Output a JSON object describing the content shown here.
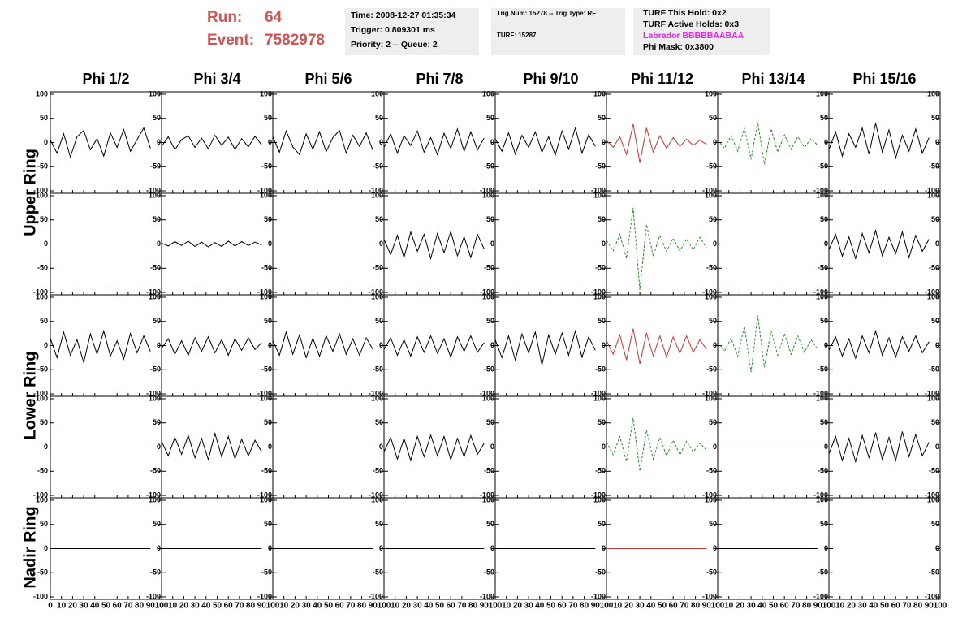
{
  "header": {
    "run_label": "Run:",
    "run": "64",
    "event_label": "Event:",
    "event": "7582978"
  },
  "info": {
    "time": "Time: 2008-12-27 01:35:34",
    "trigger": "Trigger: 0.809301 ms",
    "priority": "Priority: 2 -- Queue: 2",
    "trig": "Trig Num: 15278 -- Trig Type: RF",
    "turf": "TURF: 15287",
    "hold": "TURF This Hold: 0x2",
    "active": "TURF Active Holds: 0x3",
    "labrador": "Labrador BBBBBAABAA",
    "phimask": "Phi Mask: 0x3800"
  },
  "chart_data": {
    "type": "line",
    "columns": [
      "Phi 1/2",
      "Phi 3/4",
      "Phi 5/6",
      "Phi 7/8",
      "Phi 9/10",
      "Phi 11/12",
      "Phi 13/14",
      "Phi 15/16"
    ],
    "row_titles": [
      "Upper Ring",
      "Lower Ring",
      "Nadir Ring"
    ],
    "x": [
      0,
      6,
      12,
      18,
      24,
      30,
      36,
      42,
      48,
      54,
      60,
      66,
      72,
      78,
      84,
      90
    ],
    "xlim": [
      0,
      100
    ],
    "xticks": [
      0,
      10,
      20,
      30,
      40,
      50,
      60,
      70,
      80,
      90,
      100
    ],
    "ylim": [
      -105,
      105
    ],
    "yticks": [
      -100,
      -50,
      0,
      50,
      100
    ],
    "panels": [
      [
        {
          "color": "#000000",
          "style": "solid",
          "values": [
            5,
            -22,
            18,
            -30,
            12,
            25,
            -15,
            8,
            -28,
            20,
            -10,
            27,
            -18,
            6,
            30,
            -12
          ]
        },
        {
          "color": "#000000",
          "style": "solid",
          "values": [
            -8,
            12,
            -15,
            6,
            14,
            -10,
            9,
            -13,
            15,
            -6,
            11,
            -14,
            8,
            -9,
            13,
            -5
          ]
        },
        {
          "color": "#000000",
          "style": "solid",
          "values": [
            12,
            -20,
            24,
            -9,
            -25,
            18,
            -14,
            22,
            -19,
            10,
            25,
            -22,
            15,
            -8,
            20,
            -16
          ]
        },
        {
          "color": "#000000",
          "style": "solid",
          "values": [
            -10,
            18,
            -22,
            14,
            -6,
            24,
            -20,
            10,
            -25,
            19,
            -12,
            28,
            -18,
            22,
            -15,
            9
          ]
        },
        {
          "color": "#000000",
          "style": "solid",
          "values": [
            8,
            -18,
            20,
            -24,
            15,
            -10,
            22,
            -20,
            12,
            -26,
            24,
            -14,
            30,
            -22,
            16,
            -8
          ]
        },
        {
          "color": "#cc3333",
          "style": "solid",
          "values": [
            4,
            -10,
            12,
            -25,
            38,
            -42,
            30,
            -20,
            14,
            -12,
            10,
            -8,
            7,
            -6,
            5,
            -4
          ]
        },
        {
          "color": "#2e8b2e",
          "style": "dashed",
          "values": [
            6,
            -12,
            14,
            -18,
            30,
            -35,
            42,
            -45,
            28,
            -20,
            16,
            -14,
            12,
            -10,
            8,
            -6
          ]
        },
        {
          "color": "#000000",
          "style": "solid",
          "values": [
            -15,
            22,
            -28,
            18,
            -10,
            30,
            -24,
            40,
            -20,
            26,
            -32,
            15,
            -18,
            28,
            -22,
            10
          ]
        }
      ],
      [
        {
          "color": "#000000",
          "style": "solid",
          "values": [
            0,
            0,
            0,
            0,
            0,
            0,
            0,
            0,
            0,
            0,
            0,
            0,
            0,
            0,
            0,
            0
          ]
        },
        {
          "color": "#000000",
          "style": "solid",
          "values": [
            2,
            -4,
            5,
            -3,
            6,
            -5,
            4,
            -6,
            3,
            -5,
            6,
            -4,
            5,
            -3,
            4,
            -2
          ]
        },
        {
          "color": "#000000",
          "style": "solid",
          "values": [
            0,
            0,
            0,
            0,
            0,
            0,
            0,
            0,
            0,
            0,
            0,
            0,
            0,
            0,
            0,
            0
          ]
        },
        {
          "color": "#000000",
          "style": "solid",
          "values": [
            10,
            -22,
            18,
            -28,
            25,
            -15,
            20,
            -30,
            22,
            -18,
            26,
            -24,
            15,
            -28,
            20,
            -10
          ]
        },
        {
          "color": "#000000",
          "style": "solid",
          "values": [
            0,
            0,
            0,
            0,
            0,
            0,
            0,
            0,
            0,
            0,
            0,
            0,
            0,
            0,
            0,
            0
          ]
        },
        {
          "color": "#2e8b2e",
          "style": "dashed",
          "values": [
            8,
            -14,
            20,
            -30,
            75,
            -95,
            40,
            -25,
            18,
            -15,
            12,
            -14,
            10,
            -12,
            14,
            -8
          ]
        },
        null,
        {
          "color": "#000000",
          "style": "solid",
          "values": [
            -12,
            20,
            -25,
            15,
            -30,
            22,
            -18,
            28,
            -24,
            14,
            -20,
            25,
            -28,
            18,
            -15,
            10
          ]
        }
      ],
      [
        {
          "color": "#000000",
          "style": "solid",
          "values": [
            15,
            -25,
            28,
            -20,
            12,
            -35,
            24,
            -18,
            30,
            -22,
            10,
            -28,
            25,
            -15,
            20,
            -12
          ]
        },
        {
          "color": "#000000",
          "style": "solid",
          "values": [
            -6,
            14,
            -18,
            10,
            -20,
            16,
            -12,
            18,
            -15,
            12,
            -20,
            14,
            -10,
            16,
            -8,
            6
          ]
        },
        {
          "color": "#000000",
          "style": "solid",
          "values": [
            10,
            -20,
            28,
            -18,
            22,
            -25,
            15,
            -22,
            20,
            -12,
            24,
            -18,
            14,
            -20,
            16,
            -8
          ]
        },
        {
          "color": "#000000",
          "style": "solid",
          "values": [
            -8,
            16,
            -20,
            12,
            -22,
            18,
            -14,
            20,
            -16,
            14,
            -24,
            18,
            -12,
            20,
            -14,
            6
          ]
        },
        {
          "color": "#000000",
          "style": "solid",
          "values": [
            12,
            -25,
            20,
            -30,
            24,
            -15,
            28,
            -40,
            22,
            -18,
            26,
            -20,
            30,
            -24,
            18,
            -10
          ]
        },
        {
          "color": "#cc3333",
          "style": "solid",
          "values": [
            10,
            -18,
            22,
            -30,
            35,
            -38,
            26,
            -22,
            20,
            -24,
            18,
            -16,
            20,
            -14,
            12,
            -8
          ]
        },
        {
          "color": "#2e8b2e",
          "style": "dashed",
          "values": [
            8,
            -12,
            15,
            -22,
            40,
            -55,
            62,
            -45,
            30,
            -20,
            25,
            -18,
            20,
            -14,
            12,
            -8
          ]
        },
        {
          "color": "#000000",
          "style": "solid",
          "values": [
            -10,
            18,
            -22,
            14,
            -26,
            20,
            -15,
            30,
            -20,
            16,
            -24,
            18,
            -12,
            20,
            -15,
            8
          ]
        }
      ],
      [
        {
          "color": "#000000",
          "style": "solid",
          "values": [
            0,
            0,
            0,
            0,
            0,
            0,
            0,
            0,
            0,
            0,
            0,
            0,
            0,
            0,
            0,
            0
          ]
        },
        {
          "color": "#000000",
          "style": "solid",
          "values": [
            12,
            -18,
            20,
            -15,
            24,
            -22,
            18,
            -26,
            28,
            -20,
            22,
            -24,
            16,
            -18,
            14,
            -10
          ]
        },
        {
          "color": "#000000",
          "style": "solid",
          "values": [
            0,
            0,
            0,
            0,
            0,
            0,
            0,
            0,
            0,
            0,
            0,
            0,
            0,
            0,
            0,
            0
          ]
        },
        {
          "color": "#000000",
          "style": "solid",
          "values": [
            -10,
            20,
            -25,
            18,
            -28,
            22,
            -20,
            25,
            -18,
            22,
            -26,
            18,
            -20,
            24,
            -15,
            8
          ]
        },
        {
          "color": "#000000",
          "style": "solid",
          "values": [
            0,
            0,
            0,
            0,
            0,
            0,
            0,
            0,
            0,
            0,
            0,
            0,
            0,
            0,
            0,
            0
          ]
        },
        {
          "color": "#2e8b2e",
          "style": "dashed",
          "values": [
            10,
            -16,
            22,
            -30,
            60,
            -50,
            35,
            -25,
            20,
            -18,
            14,
            -16,
            12,
            -10,
            8,
            -6
          ]
        },
        {
          "color": "#2e8b2e",
          "style": "solid",
          "values": [
            0,
            0,
            0,
            0,
            0,
            0,
            0,
            0,
            0,
            0,
            0,
            0,
            0,
            0,
            0,
            0
          ]
        },
        {
          "color": "#000000",
          "style": "solid",
          "values": [
            -14,
            22,
            -28,
            18,
            -30,
            24,
            -22,
            30,
            -26,
            20,
            -28,
            32,
            -20,
            26,
            -18,
            10
          ]
        }
      ],
      [
        {
          "color": "#000000",
          "style": "solid",
          "values": [
            0,
            0,
            0,
            0,
            0,
            0,
            0,
            0,
            0,
            0,
            0,
            0,
            0,
            0,
            0,
            0
          ]
        },
        {
          "color": "#000000",
          "style": "solid",
          "values": [
            0,
            0,
            0,
            0,
            0,
            0,
            0,
            0,
            0,
            0,
            0,
            0,
            0,
            0,
            0,
            0
          ]
        },
        {
          "color": "#000000",
          "style": "solid",
          "values": [
            0,
            0,
            0,
            0,
            0,
            0,
            0,
            0,
            0,
            0,
            0,
            0,
            0,
            0,
            0,
            0
          ]
        },
        {
          "color": "#000000",
          "style": "solid",
          "values": [
            0,
            0,
            0,
            0,
            0,
            0,
            0,
            0,
            0,
            0,
            0,
            0,
            0,
            0,
            0,
            0
          ]
        },
        {
          "color": "#000000",
          "style": "solid",
          "values": [
            0,
            0,
            0,
            0,
            0,
            0,
            0,
            0,
            0,
            0,
            0,
            0,
            0,
            0,
            0,
            0
          ]
        },
        {
          "color": "#cc3333",
          "style": "solid",
          "values": [
            0,
            0,
            0,
            0,
            0,
            0,
            0,
            0,
            0,
            0,
            0,
            0,
            0,
            0,
            0,
            0
          ]
        },
        {
          "color": "#000000",
          "style": "solid",
          "values": [
            0,
            0,
            0,
            0,
            0,
            0,
            0,
            0,
            0,
            0,
            0,
            0,
            0,
            0,
            0,
            0
          ]
        },
        null
      ]
    ]
  }
}
